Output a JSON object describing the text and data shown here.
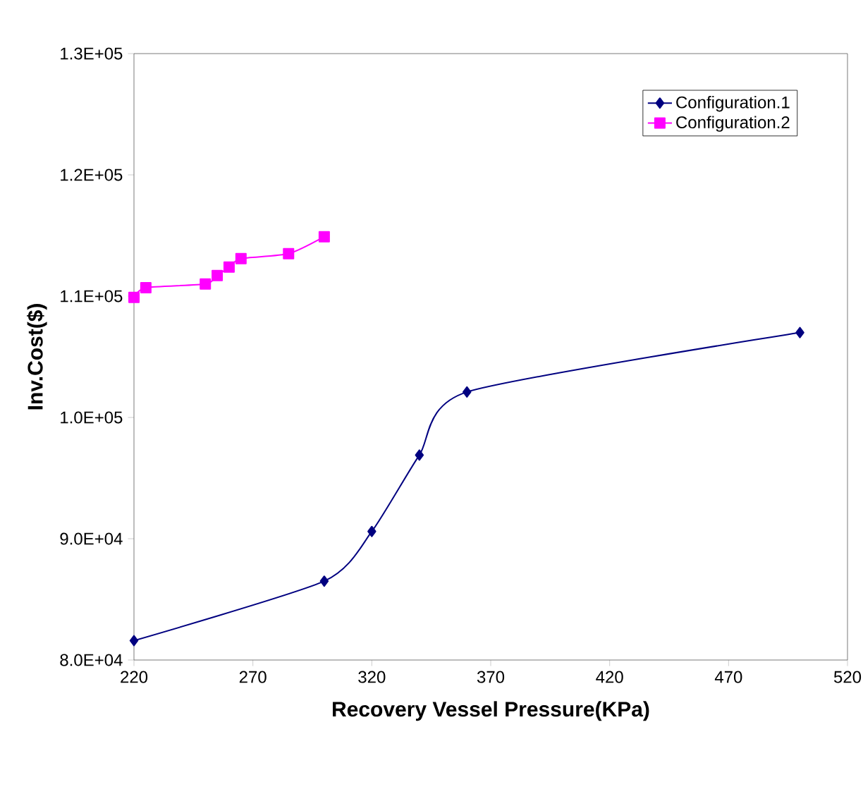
{
  "chart_data": {
    "type": "line",
    "xlabel": "Recovery Vessel Pressure(KPa)",
    "ylabel": "Inv.Cost($)",
    "xlim": [
      220,
      520
    ],
    "xticks": [
      220,
      270,
      320,
      370,
      420,
      470,
      520
    ],
    "ylim": [
      80000,
      130000
    ],
    "yticks": [
      {
        "value": 80000,
        "label": "8.0E+04"
      },
      {
        "value": 90000,
        "label": "9.0E+04"
      },
      {
        "value": 100000,
        "label": "1.0E+05"
      },
      {
        "value": 110000,
        "label": "1.1E+05"
      },
      {
        "value": 120000,
        "label": "1.2E+05"
      },
      {
        "value": 130000,
        "label": "1.3E+05"
      }
    ],
    "grid": false,
    "legend": "top right",
    "line_style": "solid",
    "series": [
      {
        "name": "Configuration.1",
        "color": "#000080",
        "marker": "diamond",
        "x": [
          220,
          300,
          320,
          340,
          360,
          500
        ],
        "values": [
          81600,
          86500,
          90600,
          96900,
          102100,
          107000
        ]
      },
      {
        "name": "Configuration.2",
        "color": "#ff00ff",
        "marker": "square",
        "x": [
          220,
          225,
          250,
          255,
          260,
          265,
          285,
          300
        ],
        "values": [
          109900,
          110700,
          111000,
          111700,
          112400,
          113100,
          113500,
          114900
        ]
      }
    ]
  }
}
